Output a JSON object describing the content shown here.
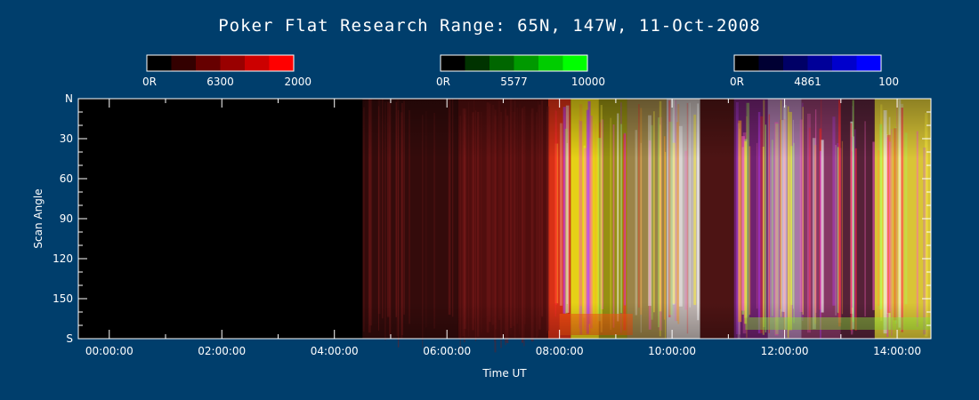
{
  "chart_data": {
    "type": "heatmap",
    "title": "Poker Flat Research Range: 65N, 147W, 11-Oct-2008",
    "xlabel": "Time UT",
    "ylabel": "Scan Angle",
    "x_ticks": [
      "00:00:00",
      "02:00:00",
      "04:00:00",
      "06:00:00",
      "08:00:00",
      "10:00:00",
      "12:00:00",
      "14:00:00"
    ],
    "x_tick_hours": [
      0,
      2,
      4,
      6,
      8,
      10,
      12,
      14
    ],
    "xlim_hours": [
      -0.55,
      14.6
    ],
    "y_ticks": [
      "N",
      "30",
      "60",
      "90",
      "120",
      "150",
      "S"
    ],
    "y_tick_values": [
      0,
      30,
      60,
      90,
      120,
      150,
      180
    ],
    "ylim": [
      0,
      180
    ],
    "colorbars": [
      {
        "wavelength": "6300",
        "min_label": "0R",
        "max_label": "2000",
        "color": "#ff0000",
        "steps": [
          "#000000",
          "#330000",
          "#660000",
          "#990000",
          "#cc0000",
          "#ff0000"
        ]
      },
      {
        "wavelength": "5577",
        "min_label": "0R",
        "max_label": "10000",
        "color": "#00ff00",
        "steps": [
          "#000000",
          "#003300",
          "#006600",
          "#009900",
          "#00cc00",
          "#00ff00"
        ]
      },
      {
        "wavelength": "4861",
        "min_label": "0R",
        "max_label": "100",
        "color": "#0000ff",
        "steps": [
          "#000000",
          "#000033",
          "#000066",
          "#000099",
          "#0000cc",
          "#0000ff"
        ]
      }
    ],
    "emission_segments": [
      {
        "start": -0.55,
        "end": 4.5,
        "color": "#000000",
        "opacity": 1.0
      },
      {
        "start": 4.5,
        "end": 6.2,
        "color": "#3a0c0c",
        "opacity": 0.9
      },
      {
        "start": 6.2,
        "end": 7.8,
        "color": "#5a1010",
        "opacity": 0.9
      },
      {
        "start": 7.8,
        "end": 8.2,
        "color": "#ff3a1a",
        "opacity": 0.85
      },
      {
        "start": 8.2,
        "end": 8.7,
        "color": "#ffe818",
        "opacity": 0.9
      },
      {
        "start": 8.7,
        "end": 9.2,
        "color": "#c8c018",
        "opacity": 0.75
      },
      {
        "start": 9.2,
        "end": 9.9,
        "color": "#d0b060",
        "opacity": 0.75
      },
      {
        "start": 9.9,
        "end": 10.5,
        "color": "#f0e4e0",
        "opacity": 0.8
      },
      {
        "start": 10.5,
        "end": 11.1,
        "color": "#5a1818",
        "opacity": 0.85
      },
      {
        "start": 11.1,
        "end": 11.7,
        "color": "#a030a0",
        "opacity": 0.7
      },
      {
        "start": 11.7,
        "end": 12.3,
        "color": "#e0a0e0",
        "opacity": 0.75
      },
      {
        "start": 12.3,
        "end": 13.0,
        "color": "#c05090",
        "opacity": 0.7
      },
      {
        "start": 13.0,
        "end": 13.6,
        "color": "#7a3050",
        "opacity": 0.7
      },
      {
        "start": 13.6,
        "end": 14.6,
        "color": "#ffe840",
        "opacity": 0.85
      }
    ],
    "grid": false
  }
}
